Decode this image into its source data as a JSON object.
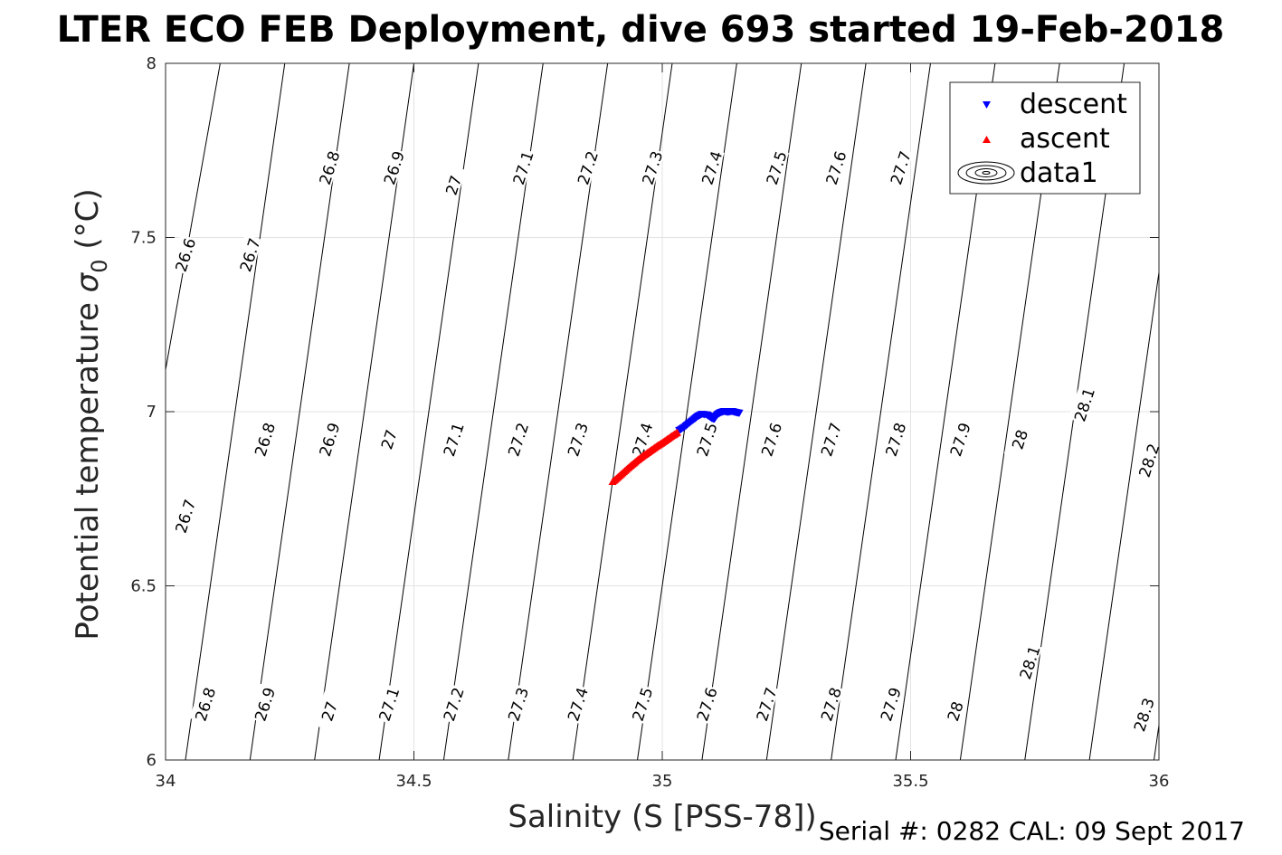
{
  "chart_data": {
    "type": "scatter",
    "title": "LTER ECO FEB Deployment, dive 693 started 19-Feb-2018",
    "xlabel": "Salinity (S [PSS-78])",
    "ylabel_main": "Potential temperature ",
    "ylabel_sym": "σ",
    "ylabel_sub": "0",
    "ylabel_unit": " (°C)",
    "xlim": [
      34,
      36
    ],
    "ylim": [
      6,
      8
    ],
    "xticks": [
      "34",
      "34.5",
      "35",
      "35.5",
      "36"
    ],
    "yticks": [
      "6",
      "6.5",
      "7",
      "7.5",
      "8"
    ],
    "grid": true,
    "legend_position": "top-right",
    "legend": [
      "descent",
      "ascent",
      "data1"
    ],
    "footer": "Serial #: 0282  CAL: 09 Sept 2017",
    "isopycnals": {
      "levels": [
        26.6,
        26.7,
        26.8,
        26.9,
        27.0,
        27.1,
        27.2,
        27.3,
        27.4,
        27.5,
        27.6,
        27.7,
        27.8,
        27.9,
        28.0,
        28.1,
        28.2,
        28.3
      ],
      "s_at_t8": [
        33.95,
        34.11,
        34.24,
        34.37,
        34.5,
        34.63,
        34.76,
        34.89,
        35.02,
        35.15,
        35.28,
        35.41,
        35.54,
        35.67,
        35.8,
        35.93,
        36.06,
        36.19
      ],
      "s_at_t6": [
        33.72,
        33.86,
        34.04,
        34.17,
        34.3,
        34.43,
        34.56,
        34.69,
        34.82,
        34.95,
        35.08,
        35.21,
        35.34,
        35.47,
        35.6,
        35.73,
        35.86,
        35.99
      ],
      "labels": [
        {
          "text": "26.6",
          "s": 34.04,
          "t": 7.45
        },
        {
          "text": "26.7",
          "s": 34.17,
          "t": 7.45
        },
        {
          "text": "26.8",
          "s": 34.33,
          "t": 7.7
        },
        {
          "text": "26.9",
          "s": 34.46,
          "t": 7.7
        },
        {
          "text": "27",
          "s": 34.58,
          "t": 7.65
        },
        {
          "text": "27.1",
          "s": 34.72,
          "t": 7.7
        },
        {
          "text": "27.2",
          "s": 34.85,
          "t": 7.7
        },
        {
          "text": "27.3",
          "s": 34.98,
          "t": 7.7
        },
        {
          "text": "27.4",
          "s": 35.1,
          "t": 7.7
        },
        {
          "text": "27.5",
          "s": 35.23,
          "t": 7.7
        },
        {
          "text": "27.6",
          "s": 35.35,
          "t": 7.7
        },
        {
          "text": "27.7",
          "s": 35.48,
          "t": 7.7
        },
        {
          "text": "26.7",
          "s": 34.04,
          "t": 6.7
        },
        {
          "text": "26.8",
          "s": 34.2,
          "t": 6.92
        },
        {
          "text": "26.9",
          "s": 34.33,
          "t": 6.92
        },
        {
          "text": "27",
          "s": 34.45,
          "t": 6.92
        },
        {
          "text": "27.1",
          "s": 34.58,
          "t": 6.92
        },
        {
          "text": "27.2",
          "s": 34.71,
          "t": 6.92
        },
        {
          "text": "27.3",
          "s": 34.83,
          "t": 6.92
        },
        {
          "text": "27.4",
          "s": 34.96,
          "t": 6.92
        },
        {
          "text": "27.5",
          "s": 35.09,
          "t": 6.92
        },
        {
          "text": "27.6",
          "s": 35.22,
          "t": 6.92
        },
        {
          "text": "27.7",
          "s": 35.34,
          "t": 6.92
        },
        {
          "text": "27.8",
          "s": 35.47,
          "t": 6.92
        },
        {
          "text": "27.9",
          "s": 35.6,
          "t": 6.92
        },
        {
          "text": "28",
          "s": 35.72,
          "t": 6.92
        },
        {
          "text": "28.1",
          "s": 35.85,
          "t": 7.02
        },
        {
          "text": "28.2",
          "s": 35.98,
          "t": 6.86
        },
        {
          "text": "26.8",
          "s": 34.08,
          "t": 6.16
        },
        {
          "text": "26.9",
          "s": 34.2,
          "t": 6.16
        },
        {
          "text": "27",
          "s": 34.33,
          "t": 6.14
        },
        {
          "text": "27.1",
          "s": 34.45,
          "t": 6.16
        },
        {
          "text": "27.2",
          "s": 34.58,
          "t": 6.16
        },
        {
          "text": "27.3",
          "s": 34.71,
          "t": 6.16
        },
        {
          "text": "27.4",
          "s": 34.83,
          "t": 6.16
        },
        {
          "text": "27.5",
          "s": 34.96,
          "t": 6.16
        },
        {
          "text": "27.6",
          "s": 35.09,
          "t": 6.16
        },
        {
          "text": "27.7",
          "s": 35.21,
          "t": 6.16
        },
        {
          "text": "27.8",
          "s": 35.34,
          "t": 6.16
        },
        {
          "text": "27.9",
          "s": 35.46,
          "t": 6.16
        },
        {
          "text": "28",
          "s": 35.59,
          "t": 6.14
        },
        {
          "text": "28.1",
          "s": 35.74,
          "t": 6.28
        },
        {
          "text": "28.3",
          "s": 35.97,
          "t": 6.13
        }
      ]
    },
    "series": [
      {
        "name": "descent",
        "marker": "triangle-down",
        "color": "#0000ff",
        "s": [
          35.034,
          35.045,
          35.055,
          35.065,
          35.072,
          35.08,
          35.09,
          35.095,
          35.1,
          35.105,
          35.108,
          35.112,
          35.118,
          35.125,
          35.132,
          35.14,
          35.148,
          35.155
        ],
        "t": [
          6.945,
          6.955,
          6.967,
          6.978,
          6.986,
          6.992,
          6.99,
          6.985,
          6.98,
          6.978,
          6.985,
          6.992,
          6.997,
          7.0,
          6.998,
          7.0,
          6.997,
          6.995
        ]
      },
      {
        "name": "ascent",
        "marker": "triangle-up",
        "color": "#ff0000",
        "s": [
          34.9,
          34.91,
          34.92,
          34.93,
          34.94,
          34.95,
          34.96,
          34.97,
          34.98,
          34.99,
          35.0,
          35.01,
          35.02,
          35.03
        ],
        "t": [
          6.8,
          6.812,
          6.825,
          6.838,
          6.85,
          6.862,
          6.873,
          6.883,
          6.893,
          6.903,
          6.912,
          6.922,
          6.932,
          6.941
        ]
      }
    ]
  }
}
